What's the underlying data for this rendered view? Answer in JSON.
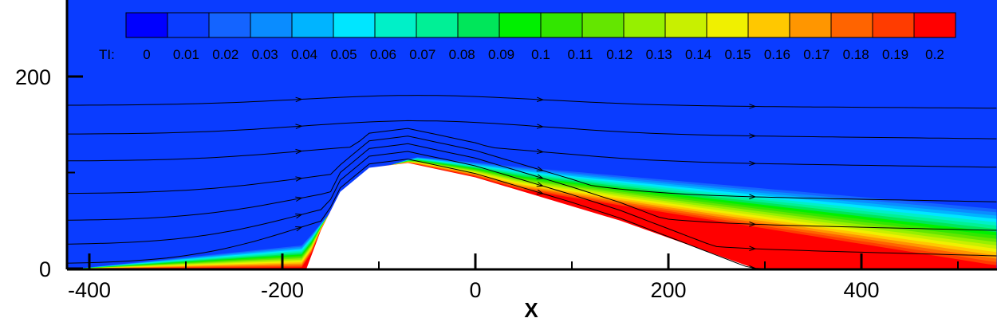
{
  "chart_data": {
    "type": "heatmap",
    "title": "",
    "xlabel": "X",
    "ylabel": "",
    "xlim": [
      -425,
      530
    ],
    "ylim": [
      0,
      275
    ],
    "x_ticks": [
      -400,
      -200,
      0,
      200,
      400
    ],
    "y_ticks": [
      0,
      200
    ],
    "x_tick_labels": [
      "-400",
      "-200",
      "0",
      "200",
      "400"
    ],
    "y_tick_labels": [
      "0",
      "200"
    ],
    "colorbar": {
      "label": "TI:",
      "levels": [
        0,
        0.01,
        0.02,
        0.03,
        0.04,
        0.05,
        0.06,
        0.07,
        0.08,
        0.09,
        0.1,
        0.11,
        0.12,
        0.13,
        0.14,
        0.15,
        0.16,
        0.17,
        0.18,
        0.19,
        0.2
      ],
      "level_labels": [
        "0",
        "0.01",
        "0.02",
        "0.03",
        "0.04",
        "0.05",
        "0.06",
        "0.07",
        "0.08",
        "0.09",
        "0.1",
        "0.11",
        "0.12",
        "0.13",
        "0.14",
        "0.15",
        "0.16",
        "0.17",
        "0.18",
        "0.19",
        "0.2"
      ],
      "colors": [
        "#0000ff",
        "#0a3cff",
        "#1464ff",
        "#0a8cff",
        "#00b4ff",
        "#00e6ff",
        "#00f0c8",
        "#00f096",
        "#00e65a",
        "#00f000",
        "#32e600",
        "#64e600",
        "#96f000",
        "#c8f000",
        "#f0f000",
        "#ffc800",
        "#ff9600",
        "#ff6400",
        "#ff3c00",
        "#ff0000"
      ]
    },
    "hill_profile": [
      [
        -175,
        0
      ],
      [
        -160,
        40
      ],
      [
        -140,
        80
      ],
      [
        -110,
        105
      ],
      [
        -70,
        110
      ],
      [
        0,
        95
      ],
      [
        150,
        50
      ],
      [
        290,
        0
      ]
    ],
    "streamlines_y_at_inlet": [
      5,
      25,
      50,
      78,
      112,
      140,
      170
    ]
  }
}
